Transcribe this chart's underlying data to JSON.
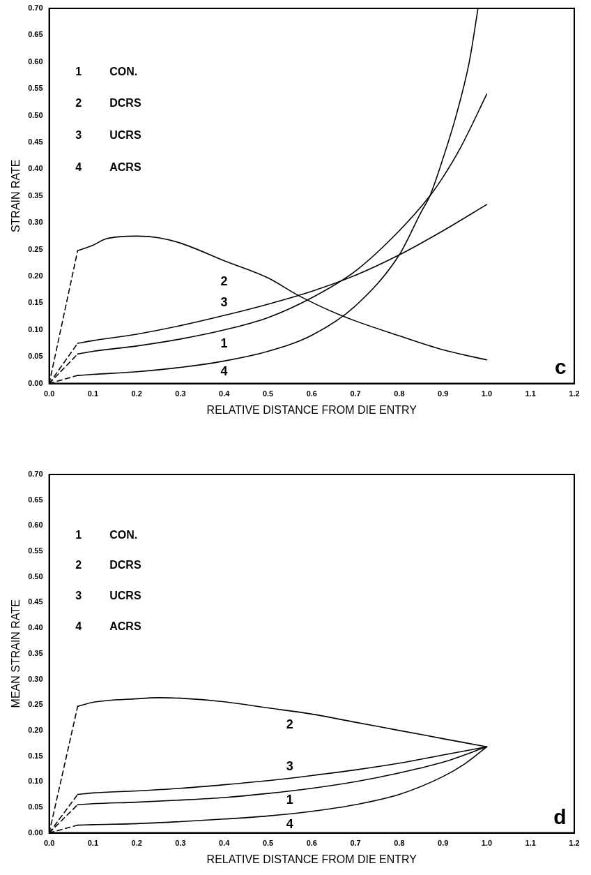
{
  "chart_data": [
    {
      "type": "line",
      "xlabel": "RELATIVE DISTANCE FROM DIE ENTRY",
      "ylabel": "STRAIN RATE",
      "marker": "none",
      "grid": false,
      "xlim": [
        0,
        1.2
      ],
      "xticks": [
        {
          "value": 0,
          "label": "0.0"
        },
        {
          "value": 0.1,
          "label": "0.1"
        },
        {
          "value": 0.2,
          "label": "0.2"
        },
        {
          "value": 0.3,
          "label": "0.3"
        },
        {
          "value": 0.4,
          "label": "0.4"
        },
        {
          "value": 0.5,
          "label": "0.5"
        },
        {
          "value": 0.6,
          "label": "0.6"
        },
        {
          "value": 0.7,
          "label": "0.7"
        },
        {
          "value": 0.8,
          "label": "0.8"
        },
        {
          "value": 0.9,
          "label": "0.9"
        },
        {
          "value": 1,
          "label": "1.0"
        },
        {
          "value": 1.1,
          "label": "1.1"
        },
        {
          "value": 1.2,
          "label": "1.2"
        }
      ],
      "ylim": [
        0,
        0.7
      ],
      "yticks": [
        {
          "value": 0,
          "label": "0.00"
        },
        {
          "value": 0.05,
          "label": "0.05"
        },
        {
          "value": 0.1,
          "label": "0.10"
        },
        {
          "value": 0.15,
          "label": "0.15"
        },
        {
          "value": 0.2,
          "label": "0.20"
        },
        {
          "value": 0.25,
          "label": "0.25"
        },
        {
          "value": 0.3,
          "label": "0.30"
        },
        {
          "value": 0.35,
          "label": "0.35"
        },
        {
          "value": 0.4,
          "label": "0.40"
        },
        {
          "value": 0.45,
          "label": "0.45"
        },
        {
          "value": 0.5,
          "label": "0.50"
        },
        {
          "value": 0.55,
          "label": "0.55"
        },
        {
          "value": 0.6,
          "label": "0.60"
        },
        {
          "value": 0.65,
          "label": "0.65"
        },
        {
          "value": 0.7,
          "label": "0.70"
        }
      ],
      "series": [
        {
          "color": "#000000",
          "line_style": "solid",
          "x": [
            0.065,
            0.1,
            0.2,
            0.3,
            0.4,
            0.5,
            0.6,
            0.7,
            0.8,
            0.87,
            0.9,
            0.94,
            1.0
          ],
          "values": [
            0.055,
            0.06,
            0.07,
            0.083,
            0.1,
            0.123,
            0.16,
            0.21,
            0.285,
            0.35,
            0.385,
            0.44,
            0.54
          ]
        },
        {
          "color": "#000000",
          "line_style": "solid",
          "x": [
            0.065,
            0.1,
            0.13,
            0.2,
            0.25,
            0.3,
            0.4,
            0.5,
            0.57,
            0.67,
            0.8,
            0.9,
            1.0
          ],
          "values": [
            0.248,
            0.258,
            0.27,
            0.275,
            0.272,
            0.262,
            0.229,
            0.197,
            0.164,
            0.126,
            0.089,
            0.063,
            0.044
          ]
        },
        {
          "color": "#000000",
          "line_style": "solid",
          "x": [
            0.065,
            0.1,
            0.2,
            0.3,
            0.4,
            0.5,
            0.6,
            0.7,
            0.8,
            0.9,
            1.0
          ],
          "values": [
            0.075,
            0.08,
            0.092,
            0.108,
            0.127,
            0.148,
            0.172,
            0.202,
            0.24,
            0.285,
            0.334
          ]
        },
        {
          "color": "#000000",
          "line_style": "solid",
          "x": [
            0.065,
            0.1,
            0.2,
            0.3,
            0.4,
            0.5,
            0.6,
            0.7,
            0.8,
            0.85,
            0.87,
            0.9,
            0.93,
            0.96,
            0.98
          ],
          "values": [
            0.015,
            0.017,
            0.022,
            0.03,
            0.042,
            0.06,
            0.09,
            0.145,
            0.24,
            0.32,
            0.35,
            0.42,
            0.5,
            0.6,
            0.7
          ]
        },
        {
          "color": "#000000",
          "line_style": "dashed",
          "x": [
            0,
            0.065
          ],
          "values": [
            0,
            0.055
          ]
        },
        {
          "color": "#000000",
          "line_style": "dashed",
          "x": [
            0,
            0.065
          ],
          "values": [
            0,
            0.248
          ]
        },
        {
          "color": "#000000",
          "line_style": "dashed",
          "x": [
            0,
            0.065
          ],
          "values": [
            0,
            0.075
          ]
        },
        {
          "color": "#000000",
          "line_style": "dashed",
          "x": [
            0,
            0.065
          ],
          "values": [
            0,
            0.015
          ]
        }
      ],
      "annotations": [
        "1",
        "CON.",
        "2",
        "DCRS",
        "3",
        "UCRS",
        "4",
        "ACRS",
        "2",
        "3",
        "1",
        "4",
        "c"
      ]
    },
    {
      "type": "line",
      "xlabel": "RELATIVE DISTANCE FROM DIE ENTRY",
      "ylabel": "MEAN STRAIN RATE",
      "marker": "none",
      "grid": false,
      "xlim": [
        0,
        1.2
      ],
      "xticks": [
        {
          "value": 0,
          "label": "0.0"
        },
        {
          "value": 0.1,
          "label": "0.1"
        },
        {
          "value": 0.2,
          "label": "0.2"
        },
        {
          "value": 0.3,
          "label": "0.3"
        },
        {
          "value": 0.4,
          "label": "0.4"
        },
        {
          "value": 0.5,
          "label": "0.5"
        },
        {
          "value": 0.6,
          "label": "0.6"
        },
        {
          "value": 0.7,
          "label": "0.7"
        },
        {
          "value": 0.8,
          "label": "0.8"
        },
        {
          "value": 0.9,
          "label": "0.9"
        },
        {
          "value": 1,
          "label": "1.0"
        },
        {
          "value": 1.1,
          "label": "1.1"
        },
        {
          "value": 1.2,
          "label": "1.2"
        }
      ],
      "ylim": [
        0,
        0.7
      ],
      "yticks": [
        {
          "value": 0,
          "label": "0.00"
        },
        {
          "value": 0.05,
          "label": "0.05"
        },
        {
          "value": 0.1,
          "label": "0.10"
        },
        {
          "value": 0.15,
          "label": "0.15"
        },
        {
          "value": 0.2,
          "label": "0.20"
        },
        {
          "value": 0.25,
          "label": "0.25"
        },
        {
          "value": 0.3,
          "label": "0.30"
        },
        {
          "value": 0.35,
          "label": "0.35"
        },
        {
          "value": 0.4,
          "label": "0.40"
        },
        {
          "value": 0.45,
          "label": "0.45"
        },
        {
          "value": 0.5,
          "label": "0.50"
        },
        {
          "value": 0.55,
          "label": "0.55"
        },
        {
          "value": 0.6,
          "label": "0.60"
        },
        {
          "value": 0.65,
          "label": "0.65"
        },
        {
          "value": 0.7,
          "label": "0.70"
        }
      ],
      "series": [
        {
          "color": "#000000",
          "line_style": "solid",
          "x": [
            0.065,
            0.1,
            0.2,
            0.3,
            0.4,
            0.5,
            0.6,
            0.7,
            0.8,
            0.9,
            1.0
          ],
          "values": [
            0.055,
            0.057,
            0.06,
            0.064,
            0.069,
            0.077,
            0.087,
            0.1,
            0.117,
            0.138,
            0.168
          ]
        },
        {
          "color": "#000000",
          "line_style": "solid",
          "x": [
            0.065,
            0.1,
            0.2,
            0.25,
            0.3,
            0.4,
            0.5,
            0.6,
            0.7,
            0.8,
            0.9,
            1.0
          ],
          "values": [
            0.247,
            0.255,
            0.262,
            0.264,
            0.263,
            0.256,
            0.244,
            0.232,
            0.216,
            0.2,
            0.184,
            0.168
          ]
        },
        {
          "color": "#000000",
          "line_style": "solid",
          "x": [
            0.065,
            0.1,
            0.2,
            0.3,
            0.4,
            0.5,
            0.6,
            0.7,
            0.8,
            0.9,
            1.0
          ],
          "values": [
            0.075,
            0.078,
            0.082,
            0.087,
            0.094,
            0.102,
            0.112,
            0.123,
            0.136,
            0.152,
            0.168
          ]
        },
        {
          "color": "#000000",
          "line_style": "solid",
          "x": [
            0.065,
            0.1,
            0.2,
            0.3,
            0.4,
            0.5,
            0.6,
            0.7,
            0.8,
            0.9,
            0.95,
            1.0
          ],
          "values": [
            0.015,
            0.016,
            0.018,
            0.022,
            0.027,
            0.033,
            0.042,
            0.055,
            0.075,
            0.11,
            0.135,
            0.168
          ]
        },
        {
          "color": "#000000",
          "line_style": "dashed",
          "x": [
            0,
            0.065
          ],
          "values": [
            0,
            0.055
          ]
        },
        {
          "color": "#000000",
          "line_style": "dashed",
          "x": [
            0,
            0.065
          ],
          "values": [
            0,
            0.247
          ]
        },
        {
          "color": "#000000",
          "line_style": "dashed",
          "x": [
            0,
            0.065
          ],
          "values": [
            0,
            0.075
          ]
        },
        {
          "color": "#000000",
          "line_style": "dashed",
          "x": [
            0,
            0.065
          ],
          "values": [
            0,
            0.015
          ]
        }
      ],
      "annotations": [
        "1",
        "CON.",
        "2",
        "DCRS",
        "3",
        "UCRS",
        "4",
        "ACRS",
        "2",
        "3",
        "1",
        "4",
        "d"
      ]
    }
  ]
}
